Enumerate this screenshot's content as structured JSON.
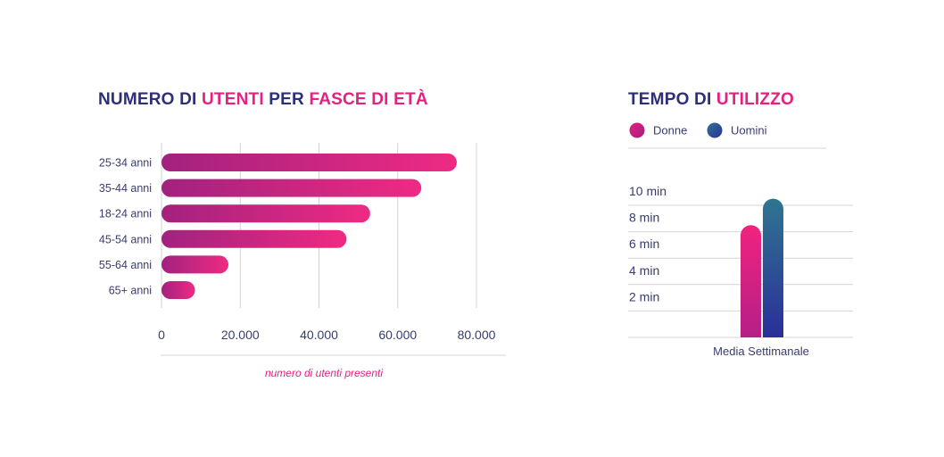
{
  "chart_data": [
    {
      "type": "bar",
      "orientation": "horizontal",
      "title_parts": [
        {
          "text": "NUMERO DI ",
          "highlight": false
        },
        {
          "text": "UTENTI",
          "highlight": true
        },
        {
          "text": " PER ",
          "highlight": false
        },
        {
          "text": "FASCE DI ETÀ",
          "highlight": true
        }
      ],
      "categories": [
        "25-34 anni",
        "35-44 anni",
        "18-24 anni",
        "45-54 anni",
        "55-64 anni",
        "65+ anni"
      ],
      "values": [
        75000,
        66000,
        53000,
        47000,
        17000,
        8500
      ],
      "xlim": [
        0,
        80000
      ],
      "xticks": [
        0,
        20000,
        40000,
        60000,
        80000
      ],
      "xtick_labels": [
        "0",
        "20.000",
        "40.000",
        "60.000",
        "80.000"
      ],
      "xlabel": "numero di utenti presenti",
      "grid": true,
      "colors": {
        "bar_start": "#a2227e",
        "bar_end": "#ef2a83"
      }
    },
    {
      "type": "bar",
      "title_parts": [
        {
          "text": "TEMPO DI ",
          "highlight": false
        },
        {
          "text": "UTILIZZO",
          "highlight": true
        }
      ],
      "categories": [
        "Media Settimanale"
      ],
      "series": [
        {
          "name": "Donne",
          "values": [
            8.5
          ],
          "color": "#e3217f"
        },
        {
          "name": "Uomini",
          "values": [
            10.5
          ],
          "color": "#2a3f8f"
        }
      ],
      "ylim": [
        0,
        10
      ],
      "yticks": [
        2,
        4,
        6,
        8,
        10
      ],
      "ytick_labels": [
        "2 min",
        "4 min",
        "6 min",
        "8 min",
        "10 min"
      ],
      "legend_position": "top-left",
      "grid": true
    }
  ],
  "colors": {
    "title": "#2e2f7a",
    "highlight": "#e3217f",
    "axis_text": "#3a3b6e",
    "grid": "#d4d4d4"
  }
}
